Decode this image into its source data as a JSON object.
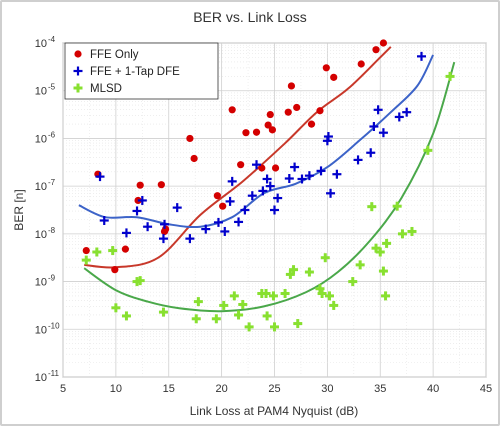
{
  "chart_data": {
    "type": "scatter",
    "title": "BER vs. Link Loss",
    "xlabel": "Link Loss at PAM4 Nyquist (dB)",
    "ylabel": "BER [n]",
    "xlim": [
      5,
      45
    ],
    "ylim_log10": [
      -11,
      -4
    ],
    "y_scale": "log",
    "grid": true,
    "legend_position": "top-left",
    "x_ticks": [
      "5",
      "10",
      "15",
      "20",
      "25",
      "30",
      "35",
      "40",
      "45"
    ],
    "y_ticks": [
      {
        "base": "10",
        "exp": "-4"
      },
      {
        "base": "10",
        "exp": "-5"
      },
      {
        "base": "10",
        "exp": "-6"
      },
      {
        "base": "10",
        "exp": "-7"
      },
      {
        "base": "10",
        "exp": "-8"
      },
      {
        "base": "10",
        "exp": "-9"
      },
      {
        "base": "10",
        "exp": "-10"
      },
      {
        "base": "10",
        "exp": "-11"
      }
    ],
    "series": [
      {
        "name": "FFE Only",
        "marker": "circle",
        "color": "#d40000",
        "trend_color": "#c8382a",
        "points_log10": [
          [
            7.2,
            -8.35
          ],
          [
            8.3,
            -6.75
          ],
          [
            9.9,
            -8.75
          ],
          [
            10.9,
            -8.32
          ],
          [
            12.1,
            -7.3
          ],
          [
            12.3,
            -6.98
          ],
          [
            14.3,
            -6.97
          ],
          [
            14.6,
            -7.95
          ],
          [
            14.7,
            -7.9
          ],
          [
            17.0,
            -6.0
          ],
          [
            17.4,
            -6.42
          ],
          [
            19.6,
            -7.2
          ],
          [
            20.1,
            -7.42
          ],
          [
            21.0,
            -5.4
          ],
          [
            21.8,
            -6.55
          ],
          [
            22.3,
            -5.88
          ],
          [
            23.3,
            -5.87
          ],
          [
            23.8,
            -6.62
          ],
          [
            24.4,
            -5.72
          ],
          [
            24.6,
            -5.5
          ],
          [
            24.8,
            -5.82
          ],
          [
            25.1,
            -6.62
          ],
          [
            26.3,
            -5.45
          ],
          [
            26.6,
            -4.9
          ],
          [
            27.1,
            -5.35
          ],
          [
            28.5,
            -5.7
          ],
          [
            29.3,
            -5.42
          ],
          [
            29.9,
            -4.52
          ],
          [
            30.6,
            -4.72
          ],
          [
            33.2,
            -4.44
          ],
          [
            34.6,
            -4.14
          ],
          [
            35.3,
            -4.0
          ]
        ],
        "trend_log10": [
          [
            7,
            -8.65
          ],
          [
            10,
            -8.7
          ],
          [
            14,
            -8.5
          ],
          [
            18,
            -7.6
          ],
          [
            22,
            -6.9
          ],
          [
            26,
            -6.1
          ],
          [
            29,
            -5.45
          ],
          [
            32,
            -4.95
          ],
          [
            35,
            -4.3
          ],
          [
            36,
            -4.08
          ]
        ]
      },
      {
        "name": "FFE + 1-Tap DFE",
        "marker": "plus",
        "color": "#0000cc",
        "trend_color": "#3c63c8",
        "points_log10": [
          [
            8.5,
            -6.8
          ],
          [
            8.9,
            -7.72
          ],
          [
            11.0,
            -7.98
          ],
          [
            12.0,
            -7.52
          ],
          [
            12.5,
            -7.3
          ],
          [
            13.0,
            -7.85
          ],
          [
            14.5,
            -8.1
          ],
          [
            14.6,
            -7.8
          ],
          [
            15.8,
            -7.45
          ],
          [
            17.0,
            -8.1
          ],
          [
            18.5,
            -7.9
          ],
          [
            19.7,
            -7.76
          ],
          [
            20.3,
            -7.95
          ],
          [
            20.8,
            -7.32
          ],
          [
            21.0,
            -6.9
          ],
          [
            21.6,
            -7.75
          ],
          [
            22.2,
            -7.5
          ],
          [
            22.9,
            -7.2
          ],
          [
            23.3,
            -6.55
          ],
          [
            23.9,
            -7.1
          ],
          [
            24.3,
            -6.85
          ],
          [
            24.6,
            -7.0
          ],
          [
            25.0,
            -7.5
          ],
          [
            25.3,
            -7.25
          ],
          [
            26.4,
            -6.84
          ],
          [
            26.9,
            -6.6
          ],
          [
            27.6,
            -6.85
          ],
          [
            28.3,
            -6.78
          ],
          [
            29.4,
            -6.68
          ],
          [
            30.0,
            -6.05
          ],
          [
            30.1,
            -5.96
          ],
          [
            30.3,
            -7.15
          ],
          [
            30.9,
            -6.75
          ],
          [
            32.9,
            -6.45
          ],
          [
            34.1,
            -6.3
          ],
          [
            34.4,
            -5.75
          ],
          [
            34.8,
            -5.4
          ],
          [
            35.3,
            -5.88
          ],
          [
            36.8,
            -5.55
          ],
          [
            37.5,
            -5.45
          ],
          [
            38.9,
            -4.28
          ]
        ],
        "trend_log10": [
          [
            6.5,
            -7.4
          ],
          [
            9,
            -7.65
          ],
          [
            12,
            -7.65
          ],
          [
            15,
            -7.8
          ],
          [
            18,
            -7.85
          ],
          [
            21,
            -7.65
          ],
          [
            24,
            -7.15
          ],
          [
            27,
            -6.95
          ],
          [
            30,
            -6.6
          ],
          [
            33,
            -6.05
          ],
          [
            36,
            -5.45
          ],
          [
            38.5,
            -4.9
          ],
          [
            40,
            -4.25
          ]
        ]
      },
      {
        "name": "MLSD",
        "marker": "plus",
        "color": "#88e030",
        "trend_color": "#4aa84a",
        "points_log10": [
          [
            7.2,
            -8.55
          ],
          [
            8.2,
            -8.38
          ],
          [
            9.7,
            -8.35
          ],
          [
            10.0,
            -9.55
          ],
          [
            11.0,
            -9.72
          ],
          [
            12.0,
            -9.0
          ],
          [
            12.3,
            -8.98
          ],
          [
            14.5,
            -9.64
          ],
          [
            17.6,
            -9.78
          ],
          [
            17.8,
            -9.42
          ],
          [
            19.5,
            -9.78
          ],
          [
            20.2,
            -9.5
          ],
          [
            21.2,
            -9.3
          ],
          [
            21.6,
            -9.7
          ],
          [
            22.0,
            -9.48
          ],
          [
            22.6,
            -9.95
          ],
          [
            23.8,
            -9.25
          ],
          [
            24.2,
            -9.25
          ],
          [
            24.3,
            -9.72
          ],
          [
            24.9,
            -9.3
          ],
          [
            25.0,
            -9.95
          ],
          [
            26.0,
            -9.25
          ],
          [
            26.5,
            -8.85
          ],
          [
            26.8,
            -8.75
          ],
          [
            27.2,
            -9.88
          ],
          [
            28.3,
            -8.8
          ],
          [
            29.3,
            -9.15
          ],
          [
            29.5,
            -9.25
          ],
          [
            29.8,
            -8.5
          ],
          [
            30.2,
            -9.3
          ],
          [
            30.6,
            -9.5
          ],
          [
            32.4,
            -9.0
          ],
          [
            33.1,
            -8.65
          ],
          [
            34.2,
            -7.43
          ],
          [
            34.6,
            -8.3
          ],
          [
            35.0,
            -8.38
          ],
          [
            35.3,
            -8.78
          ],
          [
            35.5,
            -9.3
          ],
          [
            35.6,
            -8.2
          ],
          [
            36.6,
            -7.42
          ],
          [
            37.1,
            -8.0
          ],
          [
            38.0,
            -7.95
          ],
          [
            39.5,
            -6.25
          ],
          [
            41.6,
            -4.7
          ]
        ],
        "trend_log10": [
          [
            7,
            -8.72
          ],
          [
            10,
            -9.18
          ],
          [
            13,
            -9.42
          ],
          [
            16,
            -9.56
          ],
          [
            20,
            -9.62
          ],
          [
            24,
            -9.52
          ],
          [
            28,
            -9.22
          ],
          [
            31,
            -8.8
          ],
          [
            34,
            -8.15
          ],
          [
            37,
            -7.25
          ],
          [
            40,
            -5.9
          ],
          [
            42,
            -4.4
          ]
        ]
      }
    ]
  }
}
